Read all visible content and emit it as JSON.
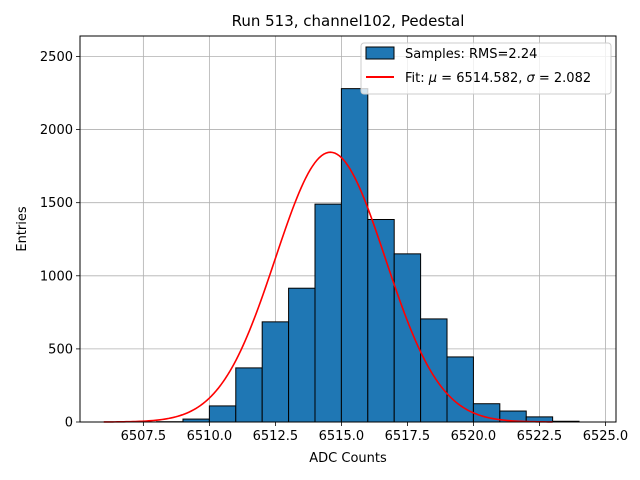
{
  "chart_data": {
    "type": "bar",
    "title": "Run 513, channel102, Pedestal",
    "xlabel": "ADC Counts",
    "ylabel": "Entries",
    "xlim": [
      6505.1,
      6525.4
    ],
    "ylim": [
      0,
      2640
    ],
    "grid": true,
    "legend_position": "top-right",
    "x_ticks": [
      {
        "value": 6507.5,
        "label": "6507.5"
      },
      {
        "value": 6510.0,
        "label": "6510.0"
      },
      {
        "value": 6512.5,
        "label": "6512.5"
      },
      {
        "value": 6515.0,
        "label": "6515.0"
      },
      {
        "value": 6517.5,
        "label": "6517.5"
      },
      {
        "value": 6520.0,
        "label": "6520.0"
      },
      {
        "value": 6522.5,
        "label": "6522.5"
      },
      {
        "value": 6525.0,
        "label": "6525.0"
      }
    ],
    "y_ticks": [
      {
        "value": 0,
        "label": "0"
      },
      {
        "value": 500,
        "label": "500"
      },
      {
        "value": 1000,
        "label": "1000"
      },
      {
        "value": 1500,
        "label": "1500"
      },
      {
        "value": 2000,
        "label": "2000"
      },
      {
        "value": 2500,
        "label": "2500"
      }
    ],
    "histogram": {
      "name": "Samples: RMS=2.24",
      "color": "#1f77b4",
      "edge_color": "#000000",
      "bins": [
        {
          "x0": 6508,
          "x1": 6509,
          "count": 2
        },
        {
          "x0": 6509,
          "x1": 6510,
          "count": 20
        },
        {
          "x0": 6510,
          "x1": 6511,
          "count": 110
        },
        {
          "x0": 6511,
          "x1": 6512,
          "count": 370
        },
        {
          "x0": 6512,
          "x1": 6513,
          "count": 685
        },
        {
          "x0": 6513,
          "x1": 6514,
          "count": 915
        },
        {
          "x0": 6514,
          "x1": 6515,
          "count": 1490
        },
        {
          "x0": 6515,
          "x1": 6516,
          "count": 2280
        },
        {
          "x0": 6516,
          "x1": 6517,
          "count": 1385
        },
        {
          "x0": 6517,
          "x1": 6518,
          "count": 1150
        },
        {
          "x0": 6518,
          "x1": 6519,
          "count": 705
        },
        {
          "x0": 6519,
          "x1": 6520,
          "count": 445
        },
        {
          "x0": 6520,
          "x1": 6521,
          "count": 125
        },
        {
          "x0": 6521,
          "x1": 6522,
          "count": 75
        },
        {
          "x0": 6522,
          "x1": 6523,
          "count": 35
        },
        {
          "x0": 6523,
          "x1": 6524,
          "count": 5
        }
      ]
    },
    "fit": {
      "name": "Fit: μ = 6514.582, σ = 2.082",
      "legend_prefix": "Fit: ",
      "legend_mu_symbol": "μ",
      "legend_mu_value": " = 6514.582, ",
      "legend_sigma_symbol": "σ",
      "legend_sigma_value": " = 2.082",
      "color": "#ff0000",
      "mu": 6514.582,
      "sigma": 2.082,
      "amplitude": 1845,
      "x_range": [
        6506.0,
        6523.0
      ]
    }
  }
}
